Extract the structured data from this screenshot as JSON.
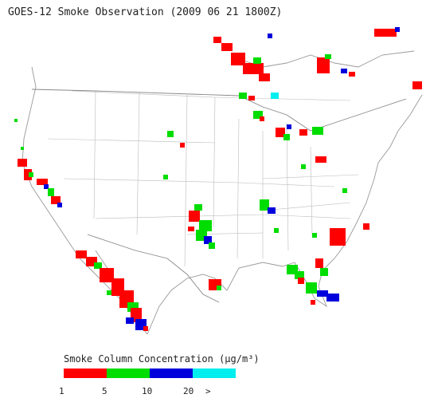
{
  "title": "GOES-12 Smoke Observation (2009 06 21  1800Z)",
  "legend": {
    "title": "Smoke Column Concentration (μg/m³)",
    "ticks": [
      "1",
      "5",
      "10",
      "20",
      ">"
    ],
    "colors": [
      "#ff0000",
      "#00dd00",
      "#0000dd",
      "#00eeee"
    ]
  },
  "map_data": {
    "region": "Continental United States with southern Canada and northern Mexico",
    "layers": [
      "coastlines",
      "state-boundaries",
      "country-boundaries",
      "smoke-concentration-pixels"
    ],
    "smoke_regions": [
      {
        "name": "smoke-pacific-coast",
        "levels": [
          "1-5",
          "5-10",
          "10-20"
        ]
      },
      {
        "name": "smoke-baja-california",
        "levels": [
          "1-5",
          "5-10",
          "10-20"
        ]
      },
      {
        "name": "smoke-southern-plains",
        "levels": [
          "1-5",
          "5-10",
          "10-20"
        ]
      },
      {
        "name": "smoke-canada-north",
        "levels": [
          "1-5",
          "5-10",
          "10-20",
          ">20"
        ]
      },
      {
        "name": "smoke-great-lakes",
        "levels": [
          "1-5",
          "5-10",
          "10-20",
          ">20"
        ]
      },
      {
        "name": "smoke-southeast",
        "levels": [
          "1-5",
          "5-10",
          "10-20"
        ]
      },
      {
        "name": "smoke-florida",
        "levels": [
          "1-5",
          "5-10",
          "10-20"
        ]
      }
    ]
  }
}
